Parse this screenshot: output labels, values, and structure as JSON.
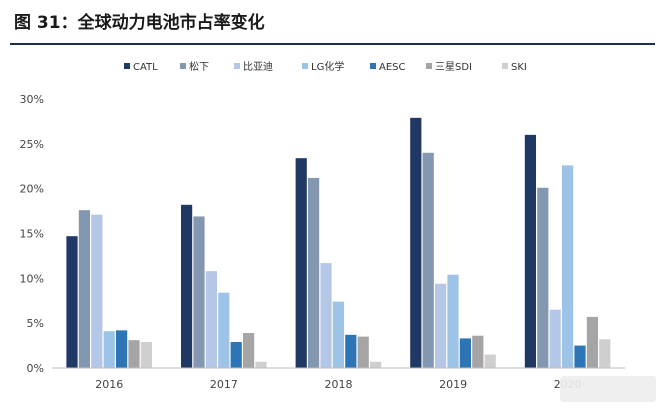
{
  "figure": {
    "title": "图 31：全球动力电池市占率变化"
  },
  "chart_data": {
    "type": "bar",
    "title": "",
    "xlabel": "",
    "ylabel": "",
    "ylim": [
      0,
      30
    ],
    "yticks": [
      "0%",
      "5%",
      "10%",
      "15%",
      "20%",
      "25%",
      "30%"
    ],
    "categories": [
      "2016",
      "2017",
      "2018",
      "2019",
      "2020"
    ],
    "legend_position": "top",
    "grid": false,
    "series": [
      {
        "name": "CATL",
        "color": "#1f3864",
        "values": [
          14.7,
          18.2,
          23.4,
          27.9,
          26.0
        ]
      },
      {
        "name": "松下",
        "color": "#8497b0",
        "values": [
          17.6,
          16.9,
          21.2,
          24.0,
          20.1
        ]
      },
      {
        "name": "比亚迪",
        "color": "#b4c7e7",
        "values": [
          17.1,
          10.8,
          11.7,
          9.4,
          6.5
        ]
      },
      {
        "name": "LG化学",
        "color": "#9dc3e6",
        "values": [
          4.1,
          8.4,
          7.4,
          10.4,
          22.6
        ]
      },
      {
        "name": "AESC",
        "color": "#2e75b6",
        "values": [
          4.2,
          2.9,
          3.7,
          3.3,
          2.5
        ]
      },
      {
        "name": "三星SDI",
        "color": "#a5a5a5",
        "values": [
          3.1,
          3.9,
          3.5,
          3.6,
          5.7
        ]
      },
      {
        "name": "SKI",
        "color": "#d0cece",
        "values": [
          2.9,
          0.7,
          0.7,
          1.5,
          3.2
        ]
      }
    ]
  }
}
